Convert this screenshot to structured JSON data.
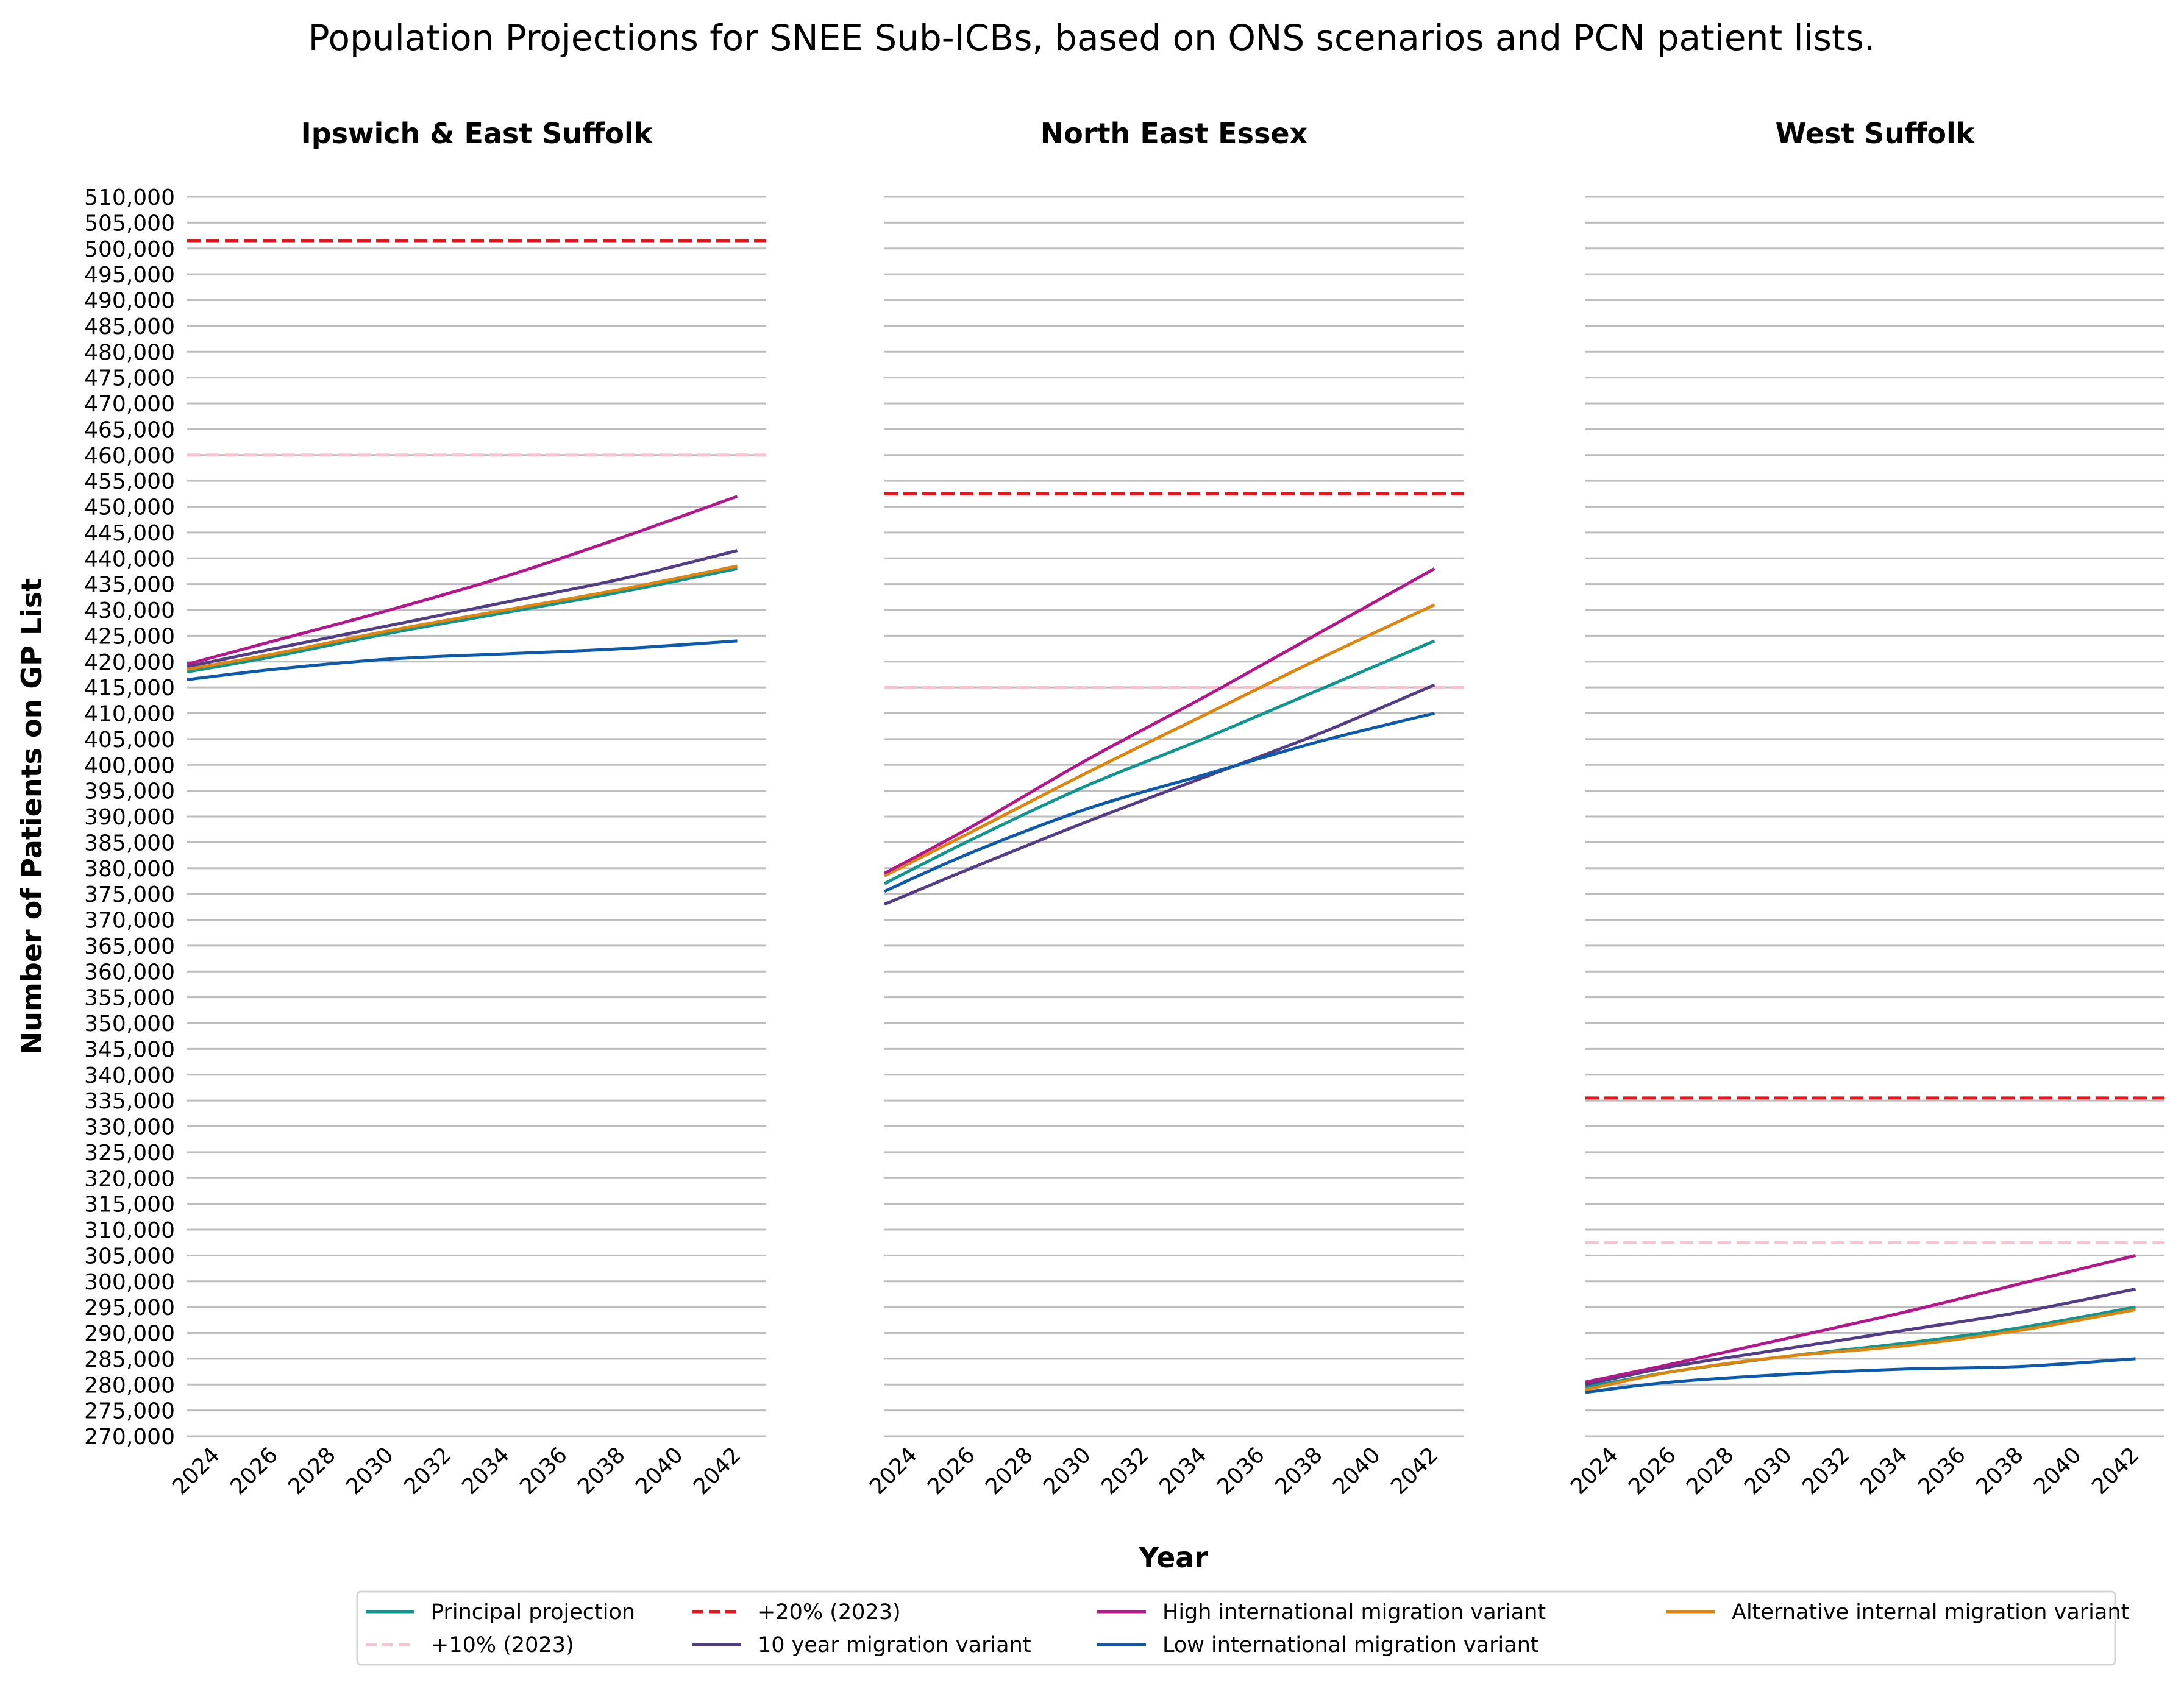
{
  "chart_data": {
    "type": "line",
    "title": "Population Projections for SNEE Sub-ICBs, based on ONS scenarios and PCN patient lists.",
    "xlabel": "Year",
    "ylabel": "Number of Patients on GP List",
    "ylim": [
      270000,
      510000
    ],
    "ytick_step": 5000,
    "xticks": [
      2024,
      2026,
      2028,
      2030,
      2032,
      2034,
      2036,
      2038,
      2040,
      2042
    ],
    "xlim": [
      2023,
      2043
    ],
    "grid": "horizontal",
    "legend_placement": "bottom-center",
    "legend": [
      {
        "key": "principal",
        "label": "Principal projection"
      },
      {
        "key": "plus10",
        "label": "+10% (2023)"
      },
      {
        "key": "plus20",
        "label": "+20% (2023)"
      },
      {
        "key": "ten_year",
        "label": "10 year migration variant"
      },
      {
        "key": "high_intl",
        "label": "High international migration variant"
      },
      {
        "key": "low_intl",
        "label": "Low international migration variant"
      },
      {
        "key": "alt_internal",
        "label": "Alternative internal migration variant"
      }
    ],
    "styles": {
      "principal": {
        "color": "#10968f",
        "dash": "none"
      },
      "plus10": {
        "color": "#f7c4d0",
        "dash": "dashed"
      },
      "plus20": {
        "color": "#e8141a",
        "dash": "dashed"
      },
      "ten_year": {
        "color": "#533d87",
        "dash": "none"
      },
      "high_intl": {
        "color": "#b3178c",
        "dash": "none"
      },
      "low_intl": {
        "color": "#0d5aab",
        "dash": "none"
      },
      "alt_internal": {
        "color": "#de8510",
        "dash": "none"
      }
    },
    "panels": [
      {
        "title": "Ipswich & East Suffolk",
        "plus20": 501500,
        "plus10": 460000,
        "series": {
          "principal": {
            "x": [
              2023,
              2026,
              2030,
              2034,
              2038,
              2042
            ],
            "y": [
              418000,
              421000,
              425500,
              429500,
              433500,
              438000
            ]
          },
          "ten_year": {
            "x": [
              2023,
              2026,
              2030,
              2034,
              2038,
              2042
            ],
            "y": [
              419000,
              422500,
              427000,
              431500,
              436000,
              441500
            ]
          },
          "high_intl": {
            "x": [
              2023,
              2026,
              2030,
              2034,
              2038,
              2042
            ],
            "y": [
              419500,
              424000,
              430000,
              436500,
              444000,
              452000
            ]
          },
          "low_intl": {
            "x": [
              2023,
              2026,
              2030,
              2034,
              2038,
              2042
            ],
            "y": [
              416500,
              418500,
              420500,
              421500,
              422500,
              424000
            ]
          },
          "alt_internal": {
            "x": [
              2023,
              2026,
              2030,
              2034,
              2038,
              2042
            ],
            "y": [
              418500,
              421500,
              426000,
              430000,
              434000,
              438500
            ]
          }
        }
      },
      {
        "title": "North East Essex",
        "plus20": 452500,
        "plus10": 415000,
        "series": {
          "principal": {
            "x": [
              2023,
              2026,
              2030,
              2034,
              2038,
              2042
            ],
            "y": [
              377000,
              385500,
              396000,
              405000,
              414500,
              424000
            ]
          },
          "ten_year": {
            "x": [
              2023,
              2026,
              2030,
              2034,
              2038,
              2042
            ],
            "y": [
              373000,
              380000,
              389000,
              397500,
              406000,
              415500
            ]
          },
          "high_intl": {
            "x": [
              2023,
              2026,
              2030,
              2034,
              2038,
              2042
            ],
            "y": [
              379000,
              388000,
              401000,
              413000,
              425500,
              438000
            ]
          },
          "low_intl": {
            "x": [
              2023,
              2026,
              2030,
              2034,
              2038,
              2042
            ],
            "y": [
              375500,
              383000,
              391500,
              398000,
              404500,
              410000
            ]
          },
          "alt_internal": {
            "x": [
              2023,
              2026,
              2030,
              2034,
              2038,
              2042
            ],
            "y": [
              378500,
              387000,
              398500,
              409500,
              420500,
              431000
            ]
          }
        }
      },
      {
        "title": "West Suffolk",
        "plus20": 335500,
        "plus10": 307500,
        "series": {
          "principal": {
            "x": [
              2023,
              2026,
              2030,
              2034,
              2038,
              2042
            ],
            "y": [
              279500,
              282500,
              285500,
              288000,
              291000,
              295000
            ]
          },
          "ten_year": {
            "x": [
              2023,
              2026,
              2030,
              2034,
              2038,
              2042
            ],
            "y": [
              280000,
              283500,
              287000,
              290500,
              294000,
              298500
            ]
          },
          "high_intl": {
            "x": [
              2023,
              2026,
              2030,
              2034,
              2038,
              2042
            ],
            "y": [
              280500,
              284000,
              289000,
              294000,
              299500,
              305000
            ]
          },
          "low_intl": {
            "x": [
              2023,
              2026,
              2030,
              2034,
              2038,
              2042
            ],
            "y": [
              278500,
              280500,
              282000,
              283000,
              283500,
              285000
            ]
          },
          "alt_internal": {
            "x": [
              2023,
              2026,
              2030,
              2034,
              2038,
              2042
            ],
            "y": [
              279000,
              282500,
              285500,
              287500,
              290500,
              294500
            ]
          }
        }
      }
    ]
  }
}
